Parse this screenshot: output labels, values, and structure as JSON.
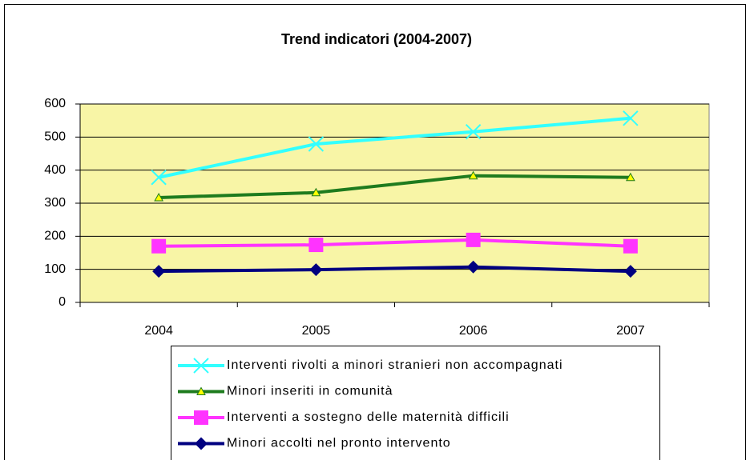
{
  "chart_data": {
    "type": "line",
    "title": "Trend indicatori (2004-2007)",
    "categories": [
      "2004",
      "2005",
      "2006",
      "2007"
    ],
    "series": [
      {
        "name": "Interventi rivolti a minori stranieri non accompagnati",
        "color": "#33ffff",
        "marker": "x",
        "values": [
          378,
          479,
          516,
          557
        ]
      },
      {
        "name": "Minori inseriti in comunità",
        "color": "#1e7b1e",
        "marker": "triangle",
        "values": [
          317,
          332,
          383,
          378
        ]
      },
      {
        "name": "Interventi a sostegno delle maternità difficili",
        "color": "#ff33ff",
        "marker": "square",
        "values": [
          170,
          174,
          189,
          170
        ]
      },
      {
        "name": "Minori accolti nel pronto intervento",
        "color": "#000080",
        "marker": "diamond",
        "values": [
          94,
          99,
          107,
          94
        ]
      }
    ],
    "ylim": [
      0,
      600
    ],
    "yticks": [
      0,
      100,
      200,
      300,
      400,
      500,
      600
    ],
    "grid": true
  }
}
